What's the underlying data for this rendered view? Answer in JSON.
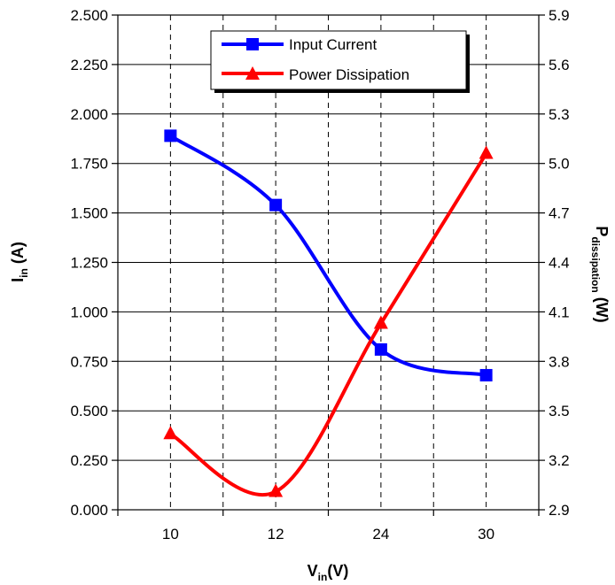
{
  "chart_data": {
    "type": "line",
    "categories": [
      "10",
      "12",
      "24",
      "30"
    ],
    "xlabel": {
      "main": "V",
      "sub": "in",
      "suffix": "(V)"
    },
    "ylabel_left": {
      "main": "I",
      "sub": "in",
      "suffix": " (A)"
    },
    "ylabel_right": {
      "main": "P",
      "sub": "dissipation",
      "suffix": " (W)"
    },
    "ylim_left": [
      0,
      2.5
    ],
    "yticks_left": [
      "0.000",
      "0.250",
      "0.500",
      "0.750",
      "1.000",
      "1.250",
      "1.500",
      "1.750",
      "2.000",
      "2.250",
      "2.500"
    ],
    "ylim_right": [
      2.9,
      5.9
    ],
    "yticks_right": [
      "2.9",
      "3.2",
      "3.5",
      "3.8",
      "4.1",
      "4.4",
      "4.7",
      "5.0",
      "5.3",
      "5.6",
      "5.9"
    ],
    "grid": {
      "horizontal": "solid",
      "vertical": "dashed"
    },
    "legend_position": "top-center",
    "series": [
      {
        "name": "Input Current",
        "axis": "left",
        "marker": "square",
        "color": "#0000ff",
        "values": [
          1.89,
          1.54,
          0.81,
          0.68
        ]
      },
      {
        "name": "Power Dissipation",
        "axis": "right",
        "marker": "triangle",
        "color": "#ff0000",
        "values": [
          3.36,
          3.01,
          4.03,
          5.06
        ]
      }
    ]
  }
}
